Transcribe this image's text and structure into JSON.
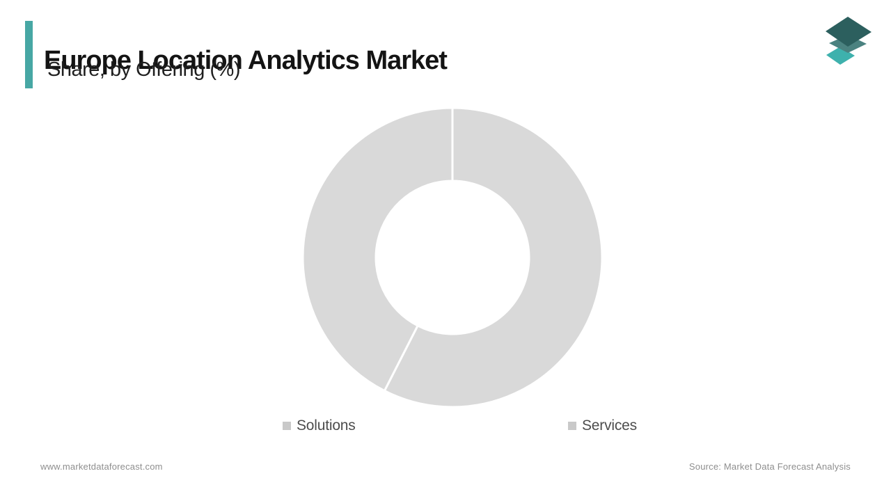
{
  "header": {
    "title": "Europe Location Analytics Market",
    "subtitle": "Share, by Offering (%)",
    "accent_color": "#47a7a4"
  },
  "logo": {
    "label": "market-data-forecast-logo",
    "colors": {
      "top_layer": "#2c5f5e",
      "middle_layer": "#4b8280",
      "bottom_layer": "#3eb1ad"
    }
  },
  "chart_data": {
    "type": "pie",
    "subtype": "donut",
    "title": "Europe Location Analytics Market",
    "subtitle": "Share, by Offering (%)",
    "unit": "%",
    "series": [
      {
        "name": "Solutions",
        "value": 57.5,
        "color": "#d9d9d9"
      },
      {
        "name": "Services",
        "value": 42.5,
        "color": "#d9d9d9"
      }
    ],
    "start_angle_deg": 0,
    "direction": "clockwise",
    "inner_radius_ratio": 0.51,
    "separator_color": "#ffffff",
    "legend_position": "bottom",
    "grid": "off"
  },
  "legend": {
    "items": [
      {
        "label": "Solutions",
        "marker_color": "#c9c9c9"
      },
      {
        "label": "Services",
        "marker_color": "#c9c9c9"
      }
    ]
  },
  "footer": {
    "website": "www.marketdataforecast.com",
    "source": "Source: Market Data Forecast Analysis"
  }
}
